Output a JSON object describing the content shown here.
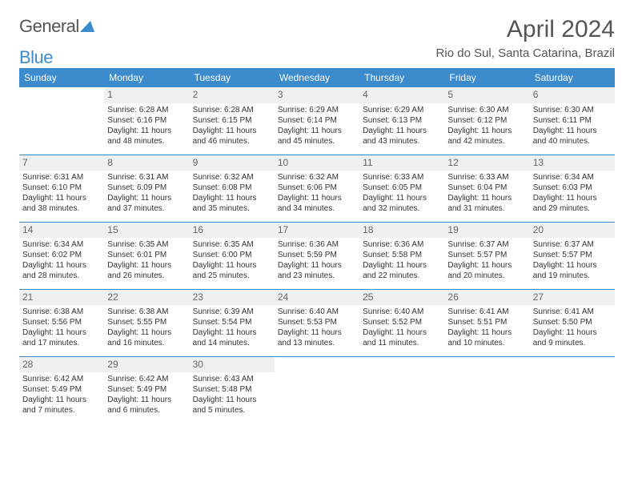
{
  "brand": {
    "part1": "General",
    "part2": "Blue"
  },
  "title": "April 2024",
  "location": "Rio do Sul, Santa Catarina, Brazil",
  "colors": {
    "header_bg": "#3b8bcd",
    "header_text": "#ffffff",
    "daynum_bg": "#eef0f1",
    "rule": "#3b8bcd",
    "title_color": "#555555",
    "body_text": "#333333"
  },
  "weekdays": [
    "Sunday",
    "Monday",
    "Tuesday",
    "Wednesday",
    "Thursday",
    "Friday",
    "Saturday"
  ],
  "layout": {
    "first_weekday_index": 1,
    "days_in_month": 30
  },
  "days": {
    "1": {
      "sunrise": "Sunrise: 6:28 AM",
      "sunset": "Sunset: 6:16 PM",
      "daylight": "Daylight: 11 hours and 48 minutes."
    },
    "2": {
      "sunrise": "Sunrise: 6:28 AM",
      "sunset": "Sunset: 6:15 PM",
      "daylight": "Daylight: 11 hours and 46 minutes."
    },
    "3": {
      "sunrise": "Sunrise: 6:29 AM",
      "sunset": "Sunset: 6:14 PM",
      "daylight": "Daylight: 11 hours and 45 minutes."
    },
    "4": {
      "sunrise": "Sunrise: 6:29 AM",
      "sunset": "Sunset: 6:13 PM",
      "daylight": "Daylight: 11 hours and 43 minutes."
    },
    "5": {
      "sunrise": "Sunrise: 6:30 AM",
      "sunset": "Sunset: 6:12 PM",
      "daylight": "Daylight: 11 hours and 42 minutes."
    },
    "6": {
      "sunrise": "Sunrise: 6:30 AM",
      "sunset": "Sunset: 6:11 PM",
      "daylight": "Daylight: 11 hours and 40 minutes."
    },
    "7": {
      "sunrise": "Sunrise: 6:31 AM",
      "sunset": "Sunset: 6:10 PM",
      "daylight": "Daylight: 11 hours and 38 minutes."
    },
    "8": {
      "sunrise": "Sunrise: 6:31 AM",
      "sunset": "Sunset: 6:09 PM",
      "daylight": "Daylight: 11 hours and 37 minutes."
    },
    "9": {
      "sunrise": "Sunrise: 6:32 AM",
      "sunset": "Sunset: 6:08 PM",
      "daylight": "Daylight: 11 hours and 35 minutes."
    },
    "10": {
      "sunrise": "Sunrise: 6:32 AM",
      "sunset": "Sunset: 6:06 PM",
      "daylight": "Daylight: 11 hours and 34 minutes."
    },
    "11": {
      "sunrise": "Sunrise: 6:33 AM",
      "sunset": "Sunset: 6:05 PM",
      "daylight": "Daylight: 11 hours and 32 minutes."
    },
    "12": {
      "sunrise": "Sunrise: 6:33 AM",
      "sunset": "Sunset: 6:04 PM",
      "daylight": "Daylight: 11 hours and 31 minutes."
    },
    "13": {
      "sunrise": "Sunrise: 6:34 AM",
      "sunset": "Sunset: 6:03 PM",
      "daylight": "Daylight: 11 hours and 29 minutes."
    },
    "14": {
      "sunrise": "Sunrise: 6:34 AM",
      "sunset": "Sunset: 6:02 PM",
      "daylight": "Daylight: 11 hours and 28 minutes."
    },
    "15": {
      "sunrise": "Sunrise: 6:35 AM",
      "sunset": "Sunset: 6:01 PM",
      "daylight": "Daylight: 11 hours and 26 minutes."
    },
    "16": {
      "sunrise": "Sunrise: 6:35 AM",
      "sunset": "Sunset: 6:00 PM",
      "daylight": "Daylight: 11 hours and 25 minutes."
    },
    "17": {
      "sunrise": "Sunrise: 6:36 AM",
      "sunset": "Sunset: 5:59 PM",
      "daylight": "Daylight: 11 hours and 23 minutes."
    },
    "18": {
      "sunrise": "Sunrise: 6:36 AM",
      "sunset": "Sunset: 5:58 PM",
      "daylight": "Daylight: 11 hours and 22 minutes."
    },
    "19": {
      "sunrise": "Sunrise: 6:37 AM",
      "sunset": "Sunset: 5:57 PM",
      "daylight": "Daylight: 11 hours and 20 minutes."
    },
    "20": {
      "sunrise": "Sunrise: 6:37 AM",
      "sunset": "Sunset: 5:57 PM",
      "daylight": "Daylight: 11 hours and 19 minutes."
    },
    "21": {
      "sunrise": "Sunrise: 6:38 AM",
      "sunset": "Sunset: 5:56 PM",
      "daylight": "Daylight: 11 hours and 17 minutes."
    },
    "22": {
      "sunrise": "Sunrise: 6:38 AM",
      "sunset": "Sunset: 5:55 PM",
      "daylight": "Daylight: 11 hours and 16 minutes."
    },
    "23": {
      "sunrise": "Sunrise: 6:39 AM",
      "sunset": "Sunset: 5:54 PM",
      "daylight": "Daylight: 11 hours and 14 minutes."
    },
    "24": {
      "sunrise": "Sunrise: 6:40 AM",
      "sunset": "Sunset: 5:53 PM",
      "daylight": "Daylight: 11 hours and 13 minutes."
    },
    "25": {
      "sunrise": "Sunrise: 6:40 AM",
      "sunset": "Sunset: 5:52 PM",
      "daylight": "Daylight: 11 hours and 11 minutes."
    },
    "26": {
      "sunrise": "Sunrise: 6:41 AM",
      "sunset": "Sunset: 5:51 PM",
      "daylight": "Daylight: 11 hours and 10 minutes."
    },
    "27": {
      "sunrise": "Sunrise: 6:41 AM",
      "sunset": "Sunset: 5:50 PM",
      "daylight": "Daylight: 11 hours and 9 minutes."
    },
    "28": {
      "sunrise": "Sunrise: 6:42 AM",
      "sunset": "Sunset: 5:49 PM",
      "daylight": "Daylight: 11 hours and 7 minutes."
    },
    "29": {
      "sunrise": "Sunrise: 6:42 AM",
      "sunset": "Sunset: 5:49 PM",
      "daylight": "Daylight: 11 hours and 6 minutes."
    },
    "30": {
      "sunrise": "Sunrise: 6:43 AM",
      "sunset": "Sunset: 5:48 PM",
      "daylight": "Daylight: 11 hours and 5 minutes."
    }
  }
}
